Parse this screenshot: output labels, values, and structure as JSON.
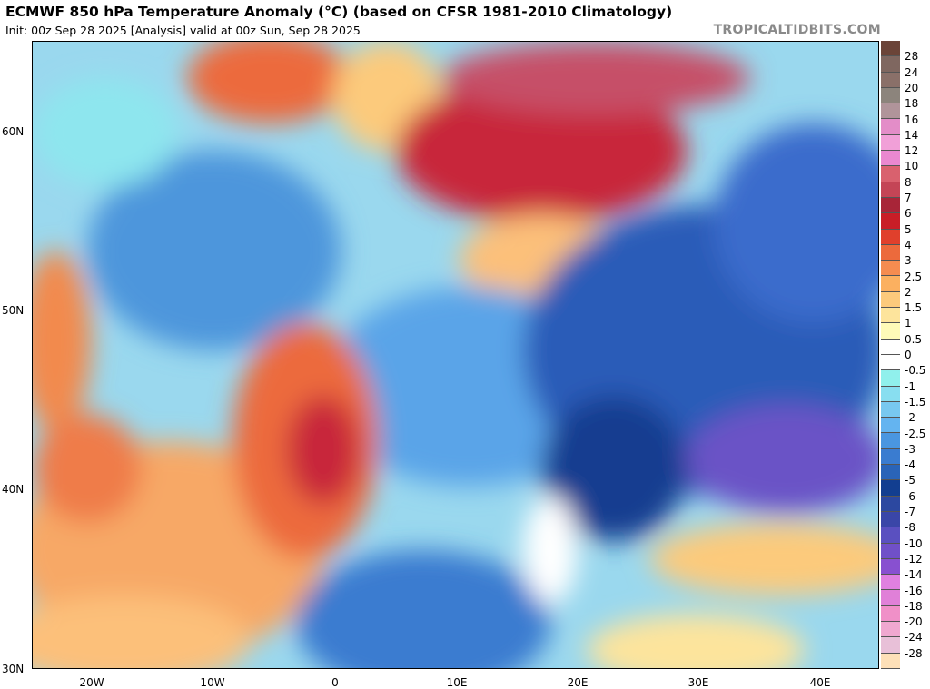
{
  "header": {
    "title": "ECMWF 850 hPa Temperature Anomaly (°C) (based on CFSR 1981-2010 Climatology)",
    "subtitle": "Init: 00z Sep 28 2025   [Analysis]   valid at 00z Sun, Sep 28 2025",
    "brand": "TROPICALTIDBITS.COM"
  },
  "map": {
    "lat_labels": [
      "60N",
      "50N",
      "40N",
      "30N"
    ],
    "lon_labels": [
      "20W",
      "10W",
      "0",
      "10E",
      "20E",
      "30E",
      "40E"
    ],
    "lat_range": [
      30,
      65
    ],
    "lon_range": [
      -25,
      45
    ]
  },
  "colorbar": {
    "labels": [
      "28",
      "24",
      "20",
      "18",
      "16",
      "14",
      "12",
      "10",
      "8",
      "7",
      "6",
      "5",
      "4",
      "3",
      "2.5",
      "2",
      "1.5",
      "1",
      "0.5",
      "0",
      "-0.5",
      "-1",
      "-1.5",
      "-2",
      "-2.5",
      "-3",
      "-4",
      "-5",
      "-6",
      "-7",
      "-8",
      "-10",
      "-12",
      "-14",
      "-16",
      "-18",
      "-20",
      "-24",
      "-28"
    ],
    "colors": [
      "#6b4438",
      "#7f6760",
      "#8a7069",
      "#8c847c",
      "#b0949a",
      "#e38dc8",
      "#f1a0d8",
      "#ea88d0",
      "#d9616e",
      "#c44556",
      "#a82538",
      "#c81e27",
      "#e0402c",
      "#ec6a3c",
      "#f58c50",
      "#fbb060",
      "#fcca7c",
      "#fde49c",
      "#fefab8",
      "#ffffff",
      "#ffffff",
      "#90f0ec",
      "#88def0",
      "#78c8f0",
      "#64b4f0",
      "#4a96e0",
      "#3a7cd0",
      "#2a64b8",
      "#123e90",
      "#2c48a0",
      "#3a46a8",
      "#5a50c0",
      "#7050c8",
      "#8850d0",
      "#e080e0",
      "#e080d8",
      "#f090c8",
      "#f0a8d0",
      "#e8c0d8",
      "#fde0b8"
    ]
  }
}
